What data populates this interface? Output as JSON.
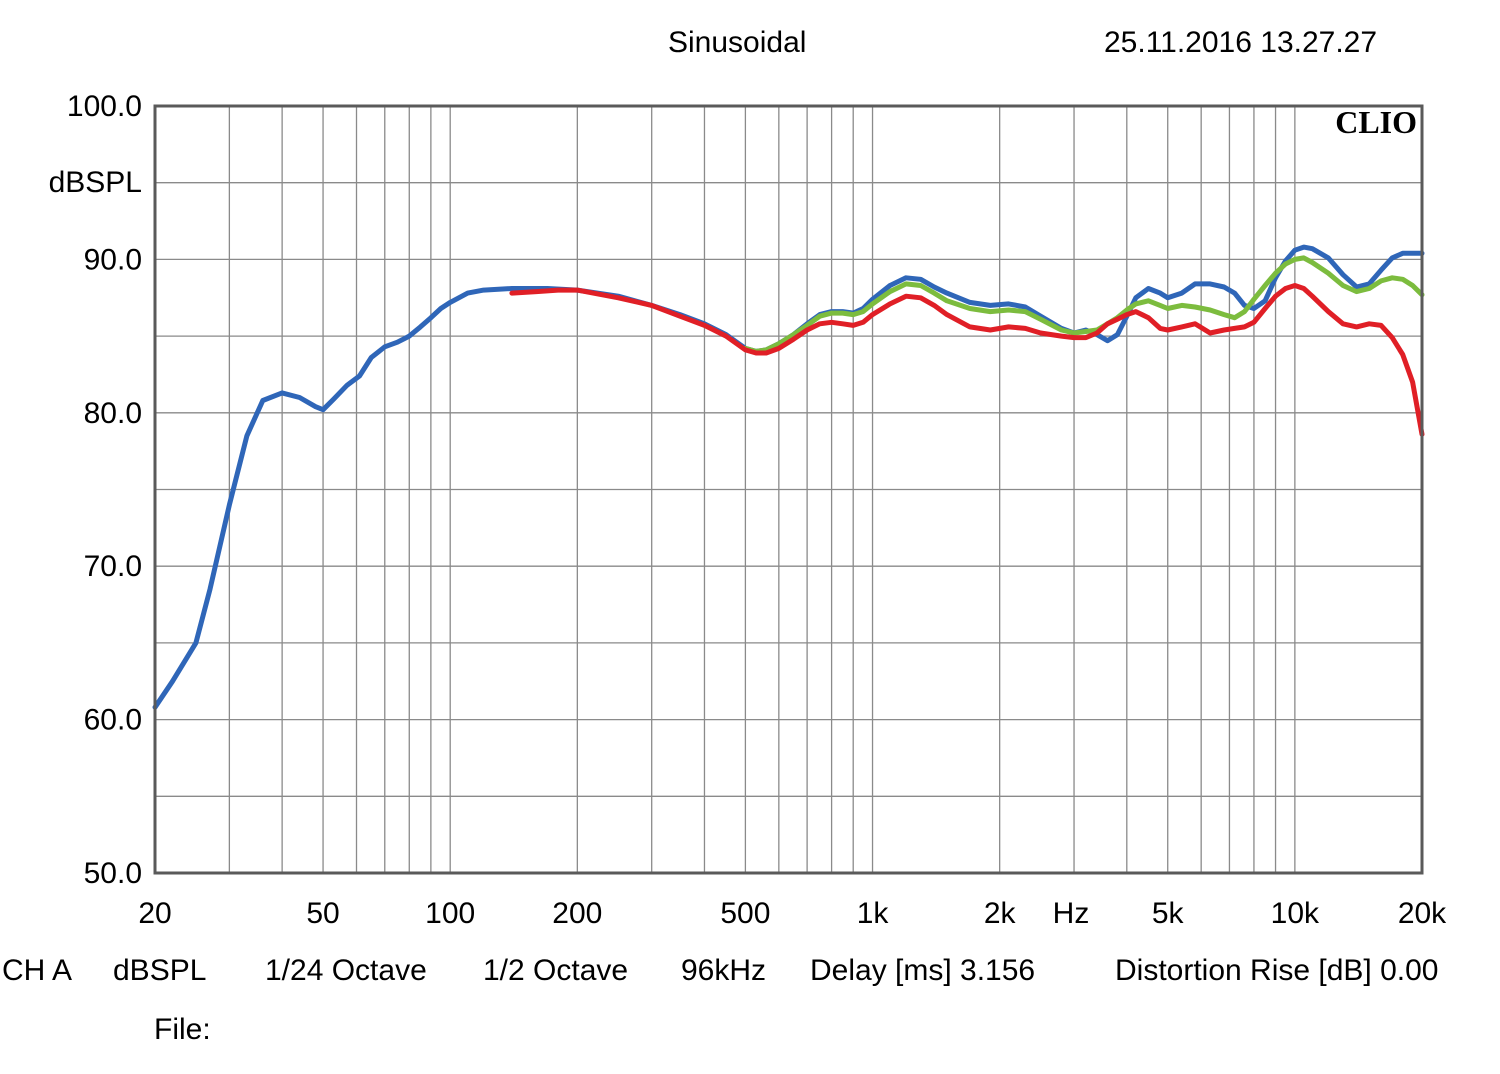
{
  "header": {
    "mode": "Sinusoidal",
    "timestamp": "25.11.2016 13.27.27"
  },
  "brand": "CLIO",
  "footer": {
    "channel": "CH A",
    "unit": "dBSPL",
    "smoothing": "1/24 Octave",
    "resolution": "1/2 Octave",
    "sample_rate": "96kHz",
    "delay": "Delay [ms] 3.156",
    "distortion": "Distortion Rise [dB] 0.00",
    "file_label": "File:"
  },
  "colors": {
    "blue": "#2f66b8",
    "green": "#7cbc3e",
    "red": "#e01f26",
    "grid": "#8a8a8a",
    "frame": "#5a5a5a"
  },
  "chart_data": {
    "type": "line",
    "title": "",
    "xlabel": "Hz",
    "ylabel": "dBSPL",
    "x_scale": "log",
    "xlim": [
      20,
      20000
    ],
    "ylim": [
      50,
      100
    ],
    "grid": true,
    "y_ticks": [
      "100.0",
      "90.0",
      "80.0",
      "70.0",
      "60.0",
      "50.0"
    ],
    "y_tick_values": [
      100,
      90,
      80,
      70,
      60,
      50
    ],
    "x_ticks": [
      "20",
      "50",
      "100",
      "200",
      "500",
      "1k",
      "2k",
      "5k",
      "10k",
      "20k"
    ],
    "x_tick_values": [
      20,
      50,
      100,
      200,
      500,
      1000,
      2000,
      5000,
      10000,
      20000
    ],
    "series": [
      {
        "color": "#2f66b8",
        "points": [
          [
            20,
            60.8
          ],
          [
            22,
            62.5
          ],
          [
            25,
            65
          ],
          [
            27,
            68.5
          ],
          [
            30,
            74
          ],
          [
            33,
            78.5
          ],
          [
            36,
            80.8
          ],
          [
            40,
            81.3
          ],
          [
            44,
            81.0
          ],
          [
            48,
            80.4
          ],
          [
            50,
            80.2
          ],
          [
            53,
            80.9
          ],
          [
            57,
            81.8
          ],
          [
            61,
            82.4
          ],
          [
            65,
            83.6
          ],
          [
            70,
            84.3
          ],
          [
            75,
            84.6
          ],
          [
            80,
            85.0
          ],
          [
            85,
            85.6
          ],
          [
            90,
            86.2
          ],
          [
            95,
            86.8
          ],
          [
            100,
            87.2
          ],
          [
            110,
            87.8
          ],
          [
            120,
            88.0
          ],
          [
            140,
            88.1
          ],
          [
            170,
            88.1
          ],
          [
            200,
            88.0
          ],
          [
            250,
            87.6
          ],
          [
            300,
            87.0
          ],
          [
            350,
            86.4
          ],
          [
            400,
            85.8
          ],
          [
            450,
            85.1
          ],
          [
            500,
            84.2
          ],
          [
            530,
            84.0
          ],
          [
            560,
            84.1
          ],
          [
            600,
            84.5
          ],
          [
            650,
            85.1
          ],
          [
            700,
            85.8
          ],
          [
            750,
            86.4
          ],
          [
            800,
            86.6
          ],
          [
            850,
            86.6
          ],
          [
            900,
            86.5
          ],
          [
            950,
            86.8
          ],
          [
            1000,
            87.4
          ],
          [
            1100,
            88.3
          ],
          [
            1200,
            88.8
          ],
          [
            1300,
            88.7
          ],
          [
            1400,
            88.2
          ],
          [
            1500,
            87.8
          ],
          [
            1700,
            87.2
          ],
          [
            1900,
            87.0
          ],
          [
            2100,
            87.1
          ],
          [
            2300,
            86.9
          ],
          [
            2500,
            86.3
          ],
          [
            2800,
            85.5
          ],
          [
            3000,
            85.2
          ],
          [
            3200,
            85.4
          ],
          [
            3400,
            85.1
          ],
          [
            3600,
            84.7
          ],
          [
            3800,
            85.1
          ],
          [
            4000,
            86.3
          ],
          [
            4200,
            87.5
          ],
          [
            4500,
            88.1
          ],
          [
            4800,
            87.8
          ],
          [
            5000,
            87.5
          ],
          [
            5400,
            87.8
          ],
          [
            5800,
            88.4
          ],
          [
            6300,
            88.4
          ],
          [
            6800,
            88.2
          ],
          [
            7200,
            87.8
          ],
          [
            7600,
            87.0
          ],
          [
            8000,
            86.8
          ],
          [
            8500,
            87.3
          ],
          [
            9000,
            88.8
          ],
          [
            9500,
            89.9
          ],
          [
            10000,
            90.6
          ],
          [
            10500,
            90.8
          ],
          [
            11000,
            90.7
          ],
          [
            12000,
            90.1
          ],
          [
            13000,
            89.0
          ],
          [
            14000,
            88.2
          ],
          [
            15000,
            88.4
          ],
          [
            16000,
            89.3
          ],
          [
            17000,
            90.1
          ],
          [
            18000,
            90.4
          ],
          [
            20000,
            90.4
          ]
        ]
      },
      {
        "color": "#7cbc3e",
        "points": [
          [
            500,
            84.2
          ],
          [
            530,
            84.0
          ],
          [
            560,
            84.1
          ],
          [
            600,
            84.5
          ],
          [
            650,
            85.1
          ],
          [
            700,
            85.7
          ],
          [
            750,
            86.3
          ],
          [
            800,
            86.5
          ],
          [
            850,
            86.5
          ],
          [
            900,
            86.4
          ],
          [
            950,
            86.6
          ],
          [
            1000,
            87.1
          ],
          [
            1100,
            87.9
          ],
          [
            1200,
            88.4
          ],
          [
            1300,
            88.3
          ],
          [
            1400,
            87.8
          ],
          [
            1500,
            87.3
          ],
          [
            1700,
            86.8
          ],
          [
            1900,
            86.6
          ],
          [
            2100,
            86.7
          ],
          [
            2300,
            86.6
          ],
          [
            2500,
            86.1
          ],
          [
            2800,
            85.4
          ],
          [
            3000,
            85.2
          ],
          [
            3200,
            85.3
          ],
          [
            3400,
            85.4
          ],
          [
            3600,
            85.8
          ],
          [
            3800,
            86.2
          ],
          [
            4000,
            86.7
          ],
          [
            4200,
            87.1
          ],
          [
            4500,
            87.3
          ],
          [
            4800,
            87.0
          ],
          [
            5000,
            86.8
          ],
          [
            5400,
            87.0
          ],
          [
            5800,
            86.9
          ],
          [
            6300,
            86.7
          ],
          [
            6800,
            86.4
          ],
          [
            7200,
            86.2
          ],
          [
            7600,
            86.6
          ],
          [
            8000,
            87.4
          ],
          [
            8500,
            88.3
          ],
          [
            9000,
            89.1
          ],
          [
            9500,
            89.7
          ],
          [
            10000,
            90.0
          ],
          [
            10500,
            90.1
          ],
          [
            11000,
            89.8
          ],
          [
            12000,
            89.1
          ],
          [
            13000,
            88.3
          ],
          [
            14000,
            87.9
          ],
          [
            15000,
            88.1
          ],
          [
            16000,
            88.6
          ],
          [
            17000,
            88.8
          ],
          [
            18000,
            88.7
          ],
          [
            19000,
            88.3
          ],
          [
            20000,
            87.7
          ]
        ]
      },
      {
        "color": "#e01f26",
        "points": [
          [
            140,
            87.8
          ],
          [
            160,
            87.9
          ],
          [
            180,
            88.0
          ],
          [
            200,
            88.0
          ],
          [
            250,
            87.5
          ],
          [
            300,
            87.0
          ],
          [
            350,
            86.3
          ],
          [
            400,
            85.7
          ],
          [
            450,
            85.0
          ],
          [
            500,
            84.1
          ],
          [
            530,
            83.9
          ],
          [
            560,
            83.9
          ],
          [
            600,
            84.2
          ],
          [
            650,
            84.8
          ],
          [
            700,
            85.4
          ],
          [
            750,
            85.8
          ],
          [
            800,
            85.9
          ],
          [
            850,
            85.8
          ],
          [
            900,
            85.7
          ],
          [
            950,
            85.9
          ],
          [
            1000,
            86.4
          ],
          [
            1100,
            87.1
          ],
          [
            1200,
            87.6
          ],
          [
            1300,
            87.5
          ],
          [
            1400,
            87.0
          ],
          [
            1500,
            86.4
          ],
          [
            1700,
            85.6
          ],
          [
            1900,
            85.4
          ],
          [
            2100,
            85.6
          ],
          [
            2300,
            85.5
          ],
          [
            2500,
            85.2
          ],
          [
            2800,
            85.0
          ],
          [
            3000,
            84.9
          ],
          [
            3200,
            84.9
          ],
          [
            3400,
            85.2
          ],
          [
            3600,
            85.8
          ],
          [
            3800,
            86.1
          ],
          [
            4000,
            86.4
          ],
          [
            4200,
            86.6
          ],
          [
            4500,
            86.2
          ],
          [
            4800,
            85.5
          ],
          [
            5000,
            85.4
          ],
          [
            5400,
            85.6
          ],
          [
            5800,
            85.8
          ],
          [
            6300,
            85.2
          ],
          [
            6800,
            85.4
          ],
          [
            7200,
            85.5
          ],
          [
            7600,
            85.6
          ],
          [
            8000,
            85.9
          ],
          [
            8500,
            86.8
          ],
          [
            9000,
            87.6
          ],
          [
            9500,
            88.1
          ],
          [
            10000,
            88.3
          ],
          [
            10500,
            88.1
          ],
          [
            11000,
            87.6
          ],
          [
            12000,
            86.6
          ],
          [
            13000,
            85.8
          ],
          [
            14000,
            85.6
          ],
          [
            15000,
            85.8
          ],
          [
            16000,
            85.7
          ],
          [
            17000,
            84.9
          ],
          [
            18000,
            83.8
          ],
          [
            19000,
            82.0
          ],
          [
            20000,
            78.6
          ]
        ]
      }
    ]
  }
}
